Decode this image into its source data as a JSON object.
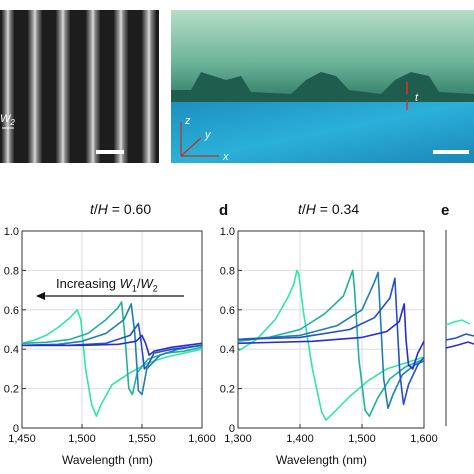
{
  "figure": {
    "panel_letters": {
      "d": "d",
      "e": "e"
    },
    "sem_left": {
      "label_w2": "W",
      "label_w2_sub": "2"
    },
    "sem_right": {
      "axis_z": "z",
      "axis_y": "y",
      "axis_x": "x",
      "label_t": "t"
    },
    "colors": {
      "c1": "#2ee8a8",
      "c2": "#1fb0a0",
      "c3": "#1f7fb5",
      "c4": "#2450c8",
      "c5": "#2a2ad8",
      "annotation_red": "#e0301e"
    }
  },
  "chart_data": [
    {
      "type": "line",
      "title_var": "t",
      "title_sep": "/",
      "title_var2": "H",
      "title_value": " = 0.60",
      "xlabel": "Wavelength (nm)",
      "ylabel": "",
      "xlim": [
        1450,
        1600
      ],
      "ylim": [
        0,
        1.0
      ],
      "x_ticks": [
        1450,
        1500,
        1550,
        1600
      ],
      "x_tick_labels": [
        "1,450",
        "1,500",
        "1,550",
        "1,600"
      ],
      "y_ticks": [
        0,
        0.2,
        0.4,
        0.6,
        0.8,
        1.0
      ],
      "y_tick_labels": [
        "0",
        "0.2",
        "0.4",
        "0.6",
        "0.8",
        "1.0"
      ],
      "grid": true,
      "annotation": {
        "prefix": "Increasing ",
        "var1": "W",
        "sub1": "1",
        "sep": "/",
        "var2": "W",
        "sub2": "2"
      },
      "series": [
        {
          "color": "#2ee8a8",
          "values": [
            [
              1450,
              0.43
            ],
            [
              1460,
              0.445
            ],
            [
              1470,
              0.47
            ],
            [
              1480,
              0.51
            ],
            [
              1490,
              0.56
            ],
            [
              1496,
              0.6
            ],
            [
              1499,
              0.55
            ],
            [
              1503,
              0.3
            ],
            [
              1508,
              0.12
            ],
            [
              1512,
              0.06
            ],
            [
              1516,
              0.12
            ],
            [
              1525,
              0.22
            ],
            [
              1540,
              0.28
            ],
            [
              1555,
              0.33
            ],
            [
              1570,
              0.36
            ],
            [
              1585,
              0.38
            ],
            [
              1600,
              0.4
            ]
          ]
        },
        {
          "color": "#1fb0a0",
          "values": [
            [
              1450,
              0.43
            ],
            [
              1470,
              0.435
            ],
            [
              1490,
              0.45
            ],
            [
              1505,
              0.48
            ],
            [
              1520,
              0.55
            ],
            [
              1530,
              0.61
            ],
            [
              1533,
              0.64
            ],
            [
              1536,
              0.45
            ],
            [
              1539,
              0.2
            ],
            [
              1542,
              0.17
            ],
            [
              1546,
              0.28
            ],
            [
              1555,
              0.35
            ],
            [
              1570,
              0.38
            ],
            [
              1585,
              0.39
            ],
            [
              1600,
              0.41
            ]
          ]
        },
        {
          "color": "#1f7fb5",
          "values": [
            [
              1450,
              0.42
            ],
            [
              1480,
              0.425
            ],
            [
              1500,
              0.44
            ],
            [
              1520,
              0.48
            ],
            [
              1535,
              0.55
            ],
            [
              1541,
              0.63
            ],
            [
              1544,
              0.48
            ],
            [
              1547,
              0.19
            ],
            [
              1550,
              0.17
            ],
            [
              1554,
              0.3
            ],
            [
              1565,
              0.37
            ],
            [
              1580,
              0.4
            ],
            [
              1600,
              0.42
            ]
          ]
        },
        {
          "color": "#2450c8",
          "values": [
            [
              1450,
              0.42
            ],
            [
              1490,
              0.42
            ],
            [
              1520,
              0.43
            ],
            [
              1540,
              0.47
            ],
            [
              1547,
              0.53
            ],
            [
              1549,
              0.45
            ],
            [
              1552,
              0.3
            ],
            [
              1555,
              0.32
            ],
            [
              1560,
              0.38
            ],
            [
              1575,
              0.4
            ],
            [
              1600,
              0.42
            ]
          ]
        },
        {
          "color": "#2a2ad8",
          "values": [
            [
              1450,
              0.42
            ],
            [
              1500,
              0.42
            ],
            [
              1530,
              0.425
            ],
            [
              1545,
              0.44
            ],
            [
              1550,
              0.47
            ],
            [
              1553,
              0.43
            ],
            [
              1556,
              0.37
            ],
            [
              1560,
              0.39
            ],
            [
              1575,
              0.41
            ],
            [
              1600,
              0.43
            ]
          ]
        }
      ]
    },
    {
      "type": "line",
      "title_var": "t",
      "title_sep": "/",
      "title_var2": "H",
      "title_value": " = 0.34",
      "xlabel": "Wavelength (nm)",
      "ylabel": "",
      "xlim": [
        1300,
        1600
      ],
      "ylim": [
        0,
        1.0
      ],
      "x_ticks": [
        1300,
        1400,
        1500,
        1600
      ],
      "x_tick_labels": [
        "1,300",
        "1,400",
        "1,500",
        "1,600"
      ],
      "y_ticks": [
        0,
        0.2,
        0.4,
        0.6,
        0.8,
        1.0
      ],
      "y_tick_labels": [
        "0",
        "0.2",
        "0.4",
        "0.6",
        "0.8",
        "1.0"
      ],
      "grid": true,
      "series": [
        {
          "color": "#2ee8a8",
          "values": [
            [
              1300,
              0.39
            ],
            [
              1330,
              0.45
            ],
            [
              1360,
              0.55
            ],
            [
              1380,
              0.66
            ],
            [
              1390,
              0.73
            ],
            [
              1395,
              0.8
            ],
            [
              1398,
              0.78
            ],
            [
              1405,
              0.6
            ],
            [
              1420,
              0.3
            ],
            [
              1435,
              0.08
            ],
            [
              1442,
              0.04
            ],
            [
              1455,
              0.08
            ],
            [
              1480,
              0.16
            ],
            [
              1510,
              0.24
            ],
            [
              1540,
              0.3
            ],
            [
              1570,
              0.33
            ],
            [
              1600,
              0.36
            ]
          ]
        },
        {
          "color": "#1fb0a0",
          "values": [
            [
              1300,
              0.44
            ],
            [
              1350,
              0.46
            ],
            [
              1400,
              0.5
            ],
            [
              1440,
              0.58
            ],
            [
              1470,
              0.67
            ],
            [
              1485,
              0.8
            ],
            [
              1488,
              0.7
            ],
            [
              1495,
              0.35
            ],
            [
              1505,
              0.09
            ],
            [
              1512,
              0.06
            ],
            [
              1525,
              0.15
            ],
            [
              1545,
              0.25
            ],
            [
              1570,
              0.31
            ],
            [
              1600,
              0.35
            ]
          ]
        },
        {
          "color": "#1f7fb5",
          "values": [
            [
              1300,
              0.45
            ],
            [
              1400,
              0.47
            ],
            [
              1460,
              0.52
            ],
            [
              1500,
              0.6
            ],
            [
              1520,
              0.74
            ],
            [
              1526,
              0.79
            ],
            [
              1530,
              0.55
            ],
            [
              1535,
              0.25
            ],
            [
              1542,
              0.1
            ],
            [
              1550,
              0.17
            ],
            [
              1565,
              0.27
            ],
            [
              1585,
              0.32
            ],
            [
              1600,
              0.34
            ]
          ]
        },
        {
          "color": "#2450c8",
          "values": [
            [
              1300,
              0.45
            ],
            [
              1400,
              0.46
            ],
            [
              1480,
              0.5
            ],
            [
              1520,
              0.56
            ],
            [
              1545,
              0.66
            ],
            [
              1553,
              0.76
            ],
            [
              1556,
              0.58
            ],
            [
              1561,
              0.28
            ],
            [
              1567,
              0.12
            ],
            [
              1575,
              0.22
            ],
            [
              1590,
              0.32
            ],
            [
              1600,
              0.36
            ]
          ]
        },
        {
          "color": "#2a2ad8",
          "values": [
            [
              1300,
              0.43
            ],
            [
              1420,
              0.44
            ],
            [
              1500,
              0.46
            ],
            [
              1540,
              0.49
            ],
            [
              1560,
              0.54
            ],
            [
              1568,
              0.63
            ],
            [
              1571,
              0.45
            ],
            [
              1575,
              0.32
            ],
            [
              1582,
              0.3
            ],
            [
              1590,
              0.38
            ],
            [
              1600,
              0.44
            ]
          ]
        }
      ]
    }
  ]
}
